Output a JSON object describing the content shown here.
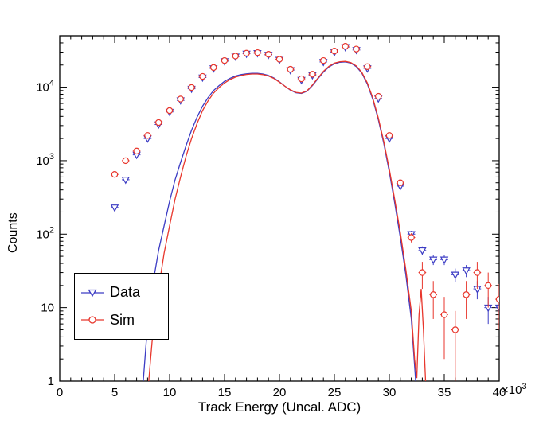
{
  "chart_data": {
    "type": "line+scatter",
    "title": "",
    "xlabel": "Track Energy (Uncal. ADC)",
    "ylabel": "Counts",
    "x_axis": {
      "min": 0,
      "max": 40,
      "minor_step": 1,
      "major_ticks": [
        0,
        5,
        10,
        15,
        20,
        25,
        30,
        35,
        40
      ],
      "exponent": {
        "base": "×10",
        "exp": "3"
      }
    },
    "y_axis": {
      "scale": "log",
      "min": 1,
      "max": 50000,
      "tick_labels": [
        {
          "base": "1",
          "exp": "",
          "value": 1
        },
        {
          "base": "10",
          "exp": "",
          "value": 10
        },
        {
          "base": "10",
          "exp": "2",
          "value": 100
        },
        {
          "base": "10",
          "exp": "3",
          "value": 1000
        },
        {
          "base": "10",
          "exp": "4",
          "value": 10000
        }
      ]
    },
    "grid": false,
    "legend_position": "lower-left",
    "colors": {
      "data": "#3c3cc4",
      "sim": "#e8362c",
      "axis": "#000000"
    },
    "series": [
      {
        "name": "Data",
        "type": "scatter",
        "marker": "open-triangle-down",
        "color_key": "data",
        "points": [
          [
            5,
            230,
            20
          ],
          [
            6,
            550,
            30
          ],
          [
            7,
            1200,
            40
          ],
          [
            8,
            2000,
            50
          ],
          [
            9,
            3100,
            60
          ],
          [
            10,
            4600,
            70
          ],
          [
            11,
            6600,
            85
          ],
          [
            12,
            9500,
            100
          ],
          [
            13,
            13500,
            120
          ],
          [
            14,
            18000,
            135
          ],
          [
            15,
            22500,
            150
          ],
          [
            16,
            26000,
            160
          ],
          [
            17,
            28500,
            170
          ],
          [
            18,
            29000,
            170
          ],
          [
            19,
            27500,
            165
          ],
          [
            20,
            23500,
            155
          ],
          [
            21,
            17000,
            130
          ],
          [
            22,
            12500,
            115
          ],
          [
            23,
            14500,
            125
          ],
          [
            24,
            22000,
            150
          ],
          [
            25,
            30000,
            175
          ],
          [
            26,
            35000,
            190
          ],
          [
            27,
            32000,
            180
          ],
          [
            28,
            18000,
            145
          ],
          [
            29,
            7000,
            90
          ],
          [
            30,
            2000,
            45
          ],
          [
            31,
            450,
            22
          ],
          [
            32,
            100,
            11
          ],
          [
            33,
            60,
            8
          ],
          [
            34,
            45,
            7
          ],
          [
            35,
            45,
            7
          ],
          [
            36,
            28,
            6
          ],
          [
            37,
            32,
            6
          ],
          [
            38,
            18,
            5
          ],
          [
            39,
            10,
            4
          ],
          [
            40,
            10,
            4
          ]
        ]
      },
      {
        "name": "Sim",
        "type": "scatter",
        "marker": "open-circle",
        "color_key": "sim",
        "points": [
          [
            5,
            650,
            35
          ],
          [
            6,
            1000,
            45
          ],
          [
            7,
            1350,
            50
          ],
          [
            8,
            2200,
            65
          ],
          [
            9,
            3300,
            80
          ],
          [
            10,
            4800,
            95
          ],
          [
            11,
            6900,
            115
          ],
          [
            12,
            9900,
            140
          ],
          [
            13,
            14000,
            165
          ],
          [
            14,
            18500,
            190
          ],
          [
            15,
            23000,
            210
          ],
          [
            16,
            26500,
            225
          ],
          [
            17,
            29000,
            235
          ],
          [
            18,
            29500,
            240
          ],
          [
            19,
            28000,
            230
          ],
          [
            20,
            24000,
            215
          ],
          [
            21,
            17500,
            185
          ],
          [
            22,
            13000,
            160
          ],
          [
            23,
            15000,
            170
          ],
          [
            24,
            23000,
            210
          ],
          [
            25,
            31000,
            245
          ],
          [
            26,
            36000,
            265
          ],
          [
            27,
            33000,
            250
          ],
          [
            28,
            19000,
            190
          ],
          [
            29,
            7500,
            120
          ],
          [
            30,
            2200,
            65
          ],
          [
            31,
            500,
            31
          ],
          [
            32,
            90,
            13
          ],
          [
            33,
            30,
            12
          ],
          [
            34,
            15,
            8
          ],
          [
            35,
            8,
            6
          ],
          [
            36,
            5,
            4
          ],
          [
            37,
            15,
            8
          ],
          [
            38,
            30,
            12
          ],
          [
            39,
            20,
            10
          ],
          [
            40,
            13,
            8
          ]
        ]
      },
      {
        "name": "Data curve",
        "type": "line",
        "color_key": "data",
        "points": [
          [
            7.6,
            1
          ],
          [
            8,
            6
          ],
          [
            8.5,
            22
          ],
          [
            9,
            60
          ],
          [
            9.5,
            130
          ],
          [
            10,
            280
          ],
          [
            10.5,
            550
          ],
          [
            11,
            950
          ],
          [
            11.5,
            1600
          ],
          [
            12,
            2600
          ],
          [
            12.5,
            3900
          ],
          [
            13,
            5500
          ],
          [
            13.5,
            7200
          ],
          [
            14,
            9000
          ],
          [
            14.5,
            10500
          ],
          [
            15,
            12000
          ],
          [
            15.5,
            13200
          ],
          [
            16,
            14200
          ],
          [
            16.5,
            14800
          ],
          [
            17,
            15200
          ],
          [
            17.5,
            15400
          ],
          [
            18,
            15400
          ],
          [
            18.5,
            15100
          ],
          [
            19,
            14400
          ],
          [
            19.5,
            13300
          ],
          [
            20,
            11800
          ],
          [
            20.5,
            10300
          ],
          [
            21,
            9100
          ],
          [
            21.5,
            8400
          ],
          [
            22,
            8200
          ],
          [
            22.5,
            8800
          ],
          [
            23,
            10500
          ],
          [
            23.5,
            13000
          ],
          [
            24,
            16000
          ],
          [
            24.5,
            18800
          ],
          [
            25,
            20800
          ],
          [
            25.5,
            21800
          ],
          [
            26,
            22000
          ],
          [
            26.5,
            21200
          ],
          [
            27,
            19000
          ],
          [
            27.5,
            15500
          ],
          [
            28,
            11000
          ],
          [
            28.5,
            6800
          ],
          [
            29,
            3600
          ],
          [
            29.5,
            1700
          ],
          [
            30,
            700
          ],
          [
            30.5,
            260
          ],
          [
            31,
            90
          ],
          [
            31.5,
            28
          ],
          [
            32,
            7
          ],
          [
            32.4,
            1
          ]
        ]
      },
      {
        "name": "Sim curve",
        "type": "line",
        "color_key": "sim",
        "points": [
          [
            8.1,
            1
          ],
          [
            8.5,
            5
          ],
          [
            9,
            18
          ],
          [
            9.5,
            55
          ],
          [
            10,
            130
          ],
          [
            10.5,
            300
          ],
          [
            11,
            600
          ],
          [
            11.5,
            1150
          ],
          [
            12,
            2000
          ],
          [
            12.5,
            3200
          ],
          [
            13,
            4800
          ],
          [
            13.5,
            6500
          ],
          [
            14,
            8300
          ],
          [
            14.5,
            9900
          ],
          [
            15,
            11400
          ],
          [
            15.5,
            12700
          ],
          [
            16,
            13700
          ],
          [
            16.5,
            14400
          ],
          [
            17,
            14900
          ],
          [
            17.5,
            15100
          ],
          [
            18,
            15100
          ],
          [
            18.5,
            14800
          ],
          [
            19,
            14200
          ],
          [
            19.5,
            13100
          ],
          [
            20,
            11700
          ],
          [
            20.5,
            10300
          ],
          [
            21,
            9200
          ],
          [
            21.5,
            8500
          ],
          [
            22,
            8300
          ],
          [
            22.5,
            8900
          ],
          [
            23,
            10700
          ],
          [
            23.5,
            13300
          ],
          [
            24,
            16400
          ],
          [
            24.5,
            19200
          ],
          [
            25,
            21200
          ],
          [
            25.5,
            22200
          ],
          [
            26,
            22400
          ],
          [
            26.5,
            21600
          ],
          [
            27,
            19400
          ],
          [
            27.5,
            15900
          ],
          [
            28,
            11400
          ],
          [
            28.5,
            7100
          ],
          [
            29,
            3800
          ],
          [
            29.5,
            1800
          ],
          [
            30,
            760
          ],
          [
            30.5,
            290
          ],
          [
            31,
            105
          ],
          [
            31.5,
            33
          ],
          [
            32,
            9
          ],
          [
            32.3,
            2
          ],
          [
            32.5,
            1.1
          ],
          [
            32.7,
            8
          ],
          [
            32.9,
            18
          ],
          [
            33.1,
            5
          ],
          [
            33.3,
            1
          ]
        ]
      }
    ],
    "legend": {
      "entries": [
        {
          "label": "Data",
          "series": 0
        },
        {
          "label": "Sim",
          "series": 1
        }
      ]
    }
  }
}
